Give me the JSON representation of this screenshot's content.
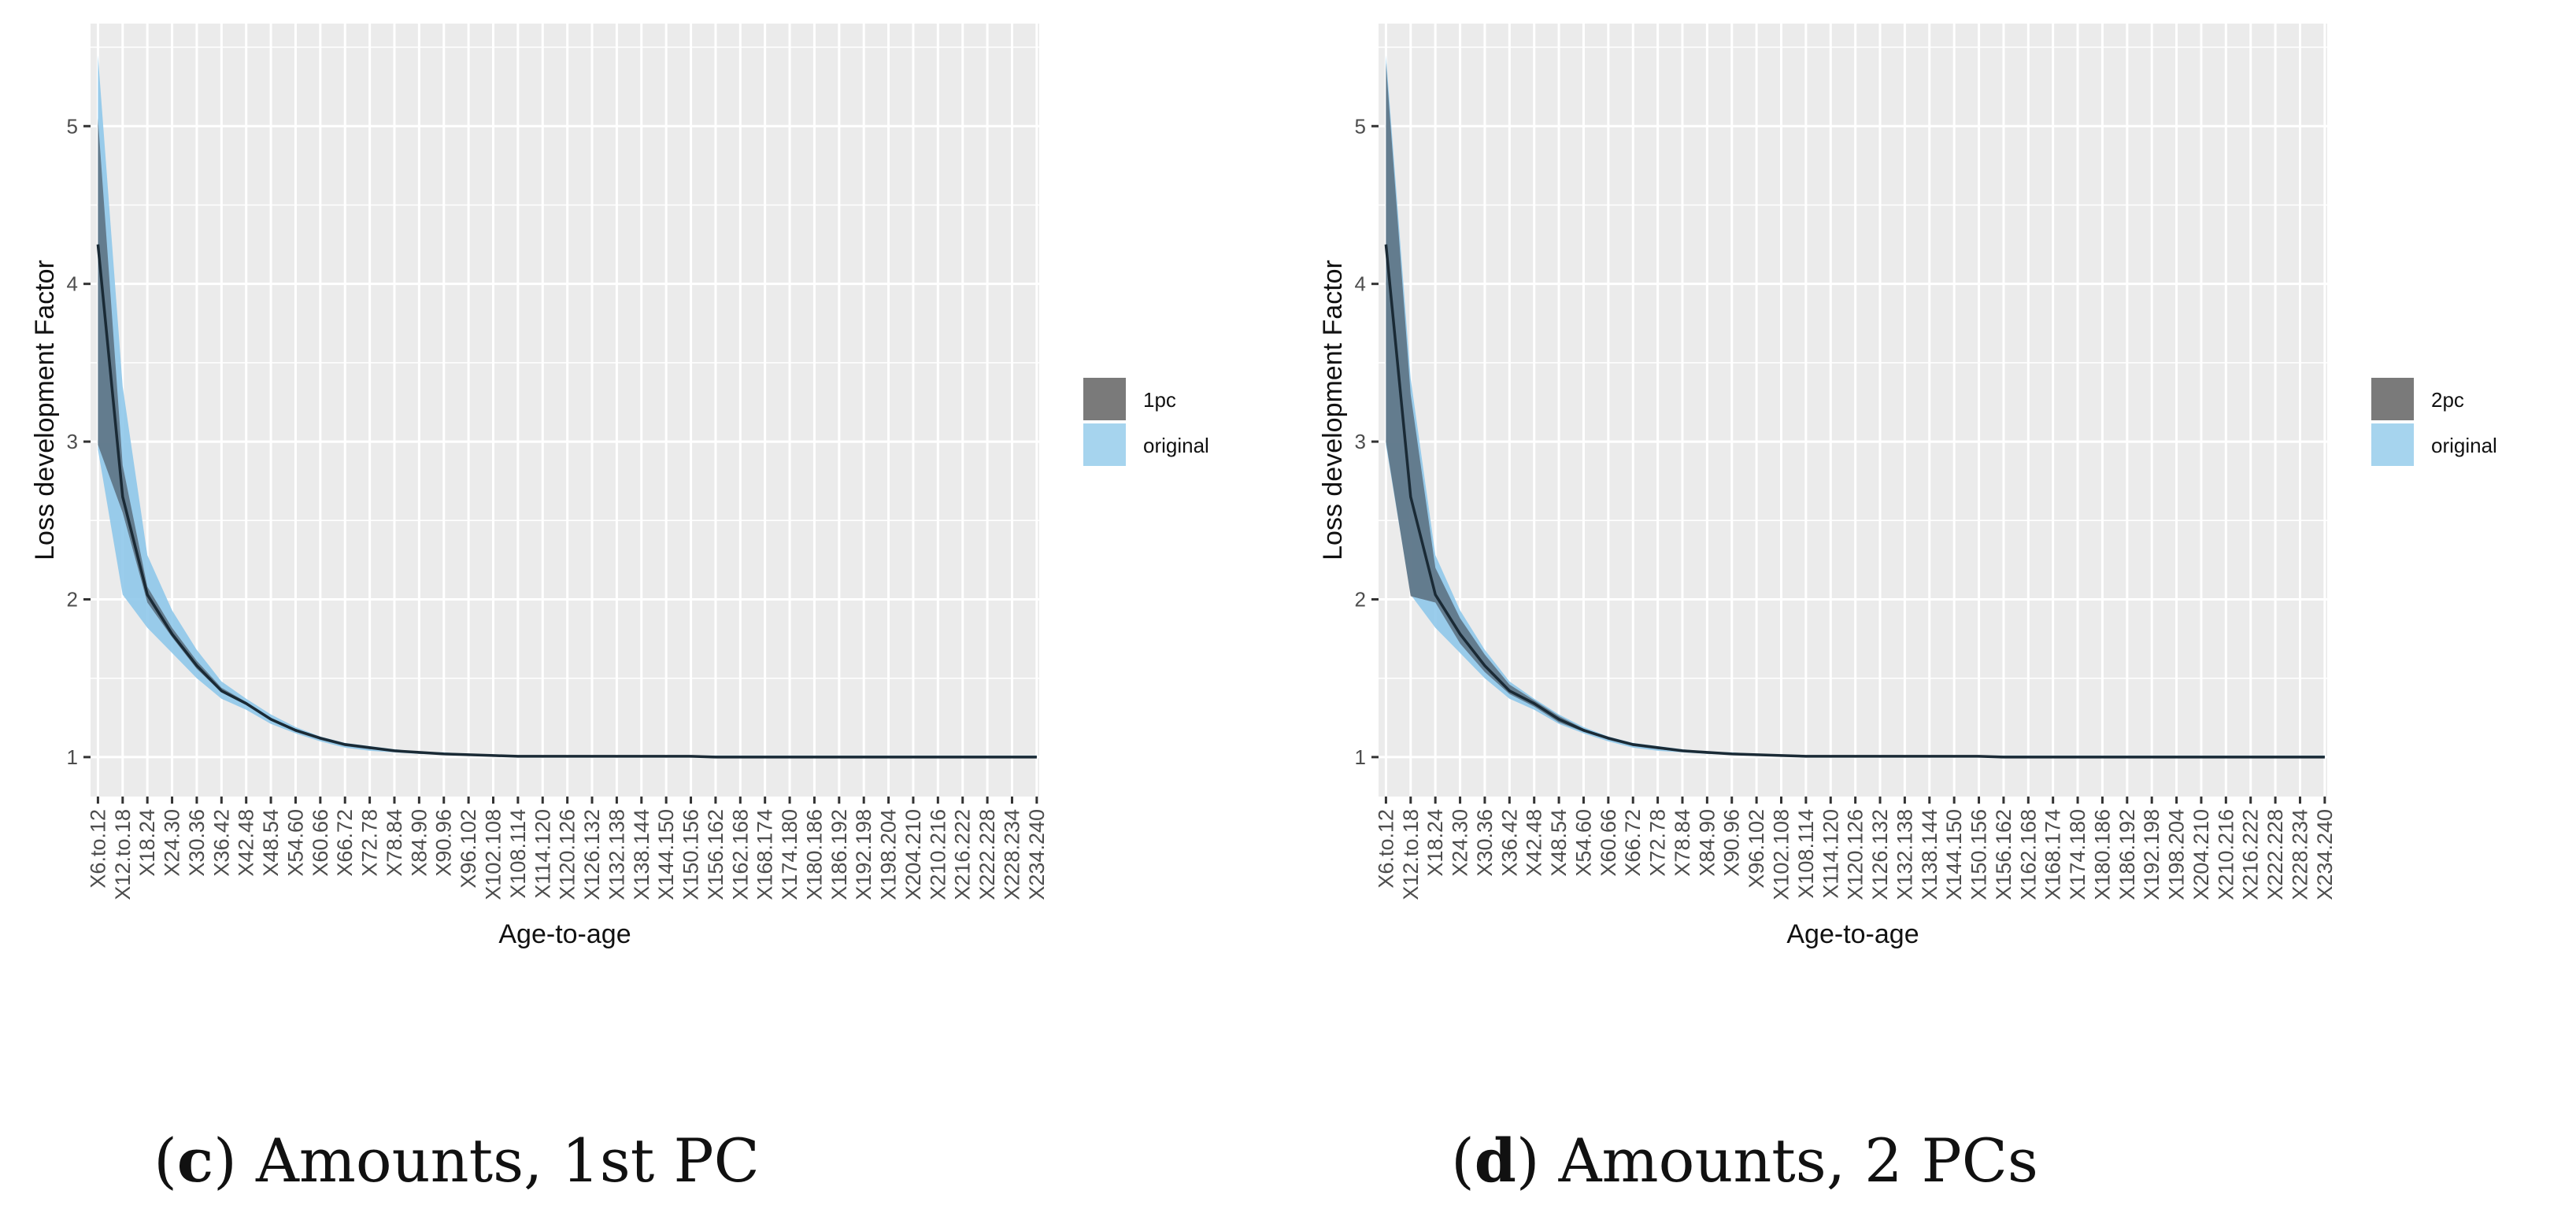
{
  "chart_data": [
    {
      "type": "area",
      "ylabel": "Loss development Factor",
      "xlabel": "Age-to-age",
      "ylim": [
        0.75,
        5.65
      ],
      "yticks": [
        "1",
        "2",
        "3",
        "4",
        "5"
      ],
      "legend_position": "right",
      "legend": [
        "1pc",
        "original"
      ],
      "categories": [
        "X6.to.12",
        "X12.to.18",
        "X18.24",
        "X24.30",
        "X30.36",
        "X36.42",
        "X42.48",
        "X48.54",
        "X54.60",
        "X60.66",
        "X66.72",
        "X72.78",
        "X78.84",
        "X84.90",
        "X90.96",
        "X96.102",
        "X102.108",
        "X108.114",
        "X114.120",
        "X120.126",
        "X126.132",
        "X132.138",
        "X138.144",
        "X144.150",
        "X150.156",
        "X156.162",
        "X162.168",
        "X168.174",
        "X174.180",
        "X180.186",
        "X186.192",
        "X192.198",
        "X198.204",
        "X204.210",
        "X210.216",
        "X216.222",
        "X222.228",
        "X228.234",
        "X234.240"
      ],
      "series": [
        {
          "name": "original",
          "lower": [
            2.95,
            2.03,
            1.82,
            1.66,
            1.5,
            1.37,
            1.3,
            1.21,
            1.15,
            1.1,
            1.06,
            1.04,
            1.03,
            1.02,
            1.015,
            1.01,
            1.005,
            1.0,
            1.0,
            1.0,
            1.0,
            1.0,
            1.0,
            1.0,
            1.0,
            1.0,
            1.0,
            1.0,
            1.0,
            1.0,
            1.0,
            1.0,
            1.0,
            1.0,
            1.0,
            1.0,
            1.0,
            1.0,
            1.0
          ],
          "upper": [
            5.45,
            3.35,
            2.28,
            1.93,
            1.68,
            1.48,
            1.37,
            1.27,
            1.19,
            1.13,
            1.09,
            1.07,
            1.05,
            1.035,
            1.03,
            1.02,
            1.015,
            1.01,
            1.01,
            1.01,
            1.01,
            1.01,
            1.01,
            1.01,
            1.01,
            1.01,
            1.01,
            1.01,
            1.01,
            1.01,
            1.01,
            1.01,
            1.01,
            1.01,
            1.01,
            1.01,
            1.01,
            1.01,
            1.01
          ]
        },
        {
          "name": "1pc",
          "lower": [
            2.98,
            2.55,
            1.98,
            1.76,
            1.56,
            1.41,
            1.33,
            1.23,
            1.16,
            1.11,
            1.07,
            1.05,
            1.04,
            1.02,
            1.02,
            1.01,
            1.005,
            1.0,
            1.0,
            1.0,
            1.0,
            1.0,
            1.0,
            1.0,
            1.0,
            1.0,
            1.0,
            1.0,
            1.0,
            1.0,
            1.0,
            1.0,
            1.0,
            1.0,
            1.0,
            1.0,
            1.0,
            1.0,
            1.0
          ],
          "upper": [
            5.05,
            2.85,
            2.08,
            1.82,
            1.61,
            1.44,
            1.35,
            1.24,
            1.17,
            1.12,
            1.08,
            1.06,
            1.045,
            1.03,
            1.025,
            1.015,
            1.01,
            1.005,
            1.005,
            1.005,
            1.005,
            1.005,
            1.005,
            1.005,
            1.005,
            1.005,
            1.005,
            1.005,
            1.005,
            1.005,
            1.005,
            1.005,
            1.005,
            1.005,
            1.005,
            1.005,
            1.005,
            1.005,
            1.005
          ]
        }
      ],
      "mean": [
        4.25,
        2.65,
        2.03,
        1.78,
        1.58,
        1.42,
        1.34,
        1.24,
        1.17,
        1.12,
        1.08,
        1.06,
        1.04,
        1.03,
        1.02,
        1.015,
        1.01,
        1.005,
        1.005,
        1.005,
        1.005,
        1.005,
        1.005,
        1.005,
        1.005,
        1.0,
        1.0,
        1.0,
        1.0,
        1.0,
        1.0,
        1.0,
        1.0,
        1.0,
        1.0,
        1.0,
        1.0,
        1.0,
        1.0
      ],
      "caption": {
        "letter": "c",
        "text": ") Amounts, 1st PC",
        "open": "("
      }
    },
    {
      "type": "area",
      "ylabel": "Loss development Factor",
      "xlabel": "Age-to-age",
      "ylim": [
        0.75,
        5.65
      ],
      "yticks": [
        "1",
        "2",
        "3",
        "4",
        "5"
      ],
      "legend_position": "right",
      "legend": [
        "2pc",
        "original"
      ],
      "categories": [
        "X6.to.12",
        "X12.to.18",
        "X18.24",
        "X24.30",
        "X30.36",
        "X36.42",
        "X42.48",
        "X48.54",
        "X54.60",
        "X60.66",
        "X66.72",
        "X72.78",
        "X78.84",
        "X84.90",
        "X90.96",
        "X96.102",
        "X102.108",
        "X108.114",
        "X114.120",
        "X120.126",
        "X126.132",
        "X132.138",
        "X138.144",
        "X144.150",
        "X150.156",
        "X156.162",
        "X162.168",
        "X168.174",
        "X174.180",
        "X180.186",
        "X186.192",
        "X192.198",
        "X198.204",
        "X204.210",
        "X210.216",
        "X216.222",
        "X222.228",
        "X228.234",
        "X234.240"
      ],
      "series": [
        {
          "name": "original",
          "lower": [
            2.98,
            2.03,
            1.82,
            1.66,
            1.5,
            1.37,
            1.3,
            1.21,
            1.15,
            1.1,
            1.06,
            1.04,
            1.03,
            1.02,
            1.015,
            1.01,
            1.005,
            1.0,
            1.0,
            1.0,
            1.0,
            1.0,
            1.0,
            1.0,
            1.0,
            1.0,
            1.0,
            1.0,
            1.0,
            1.0,
            1.0,
            1.0,
            1.0,
            1.0,
            1.0,
            1.0,
            1.0,
            1.0,
            1.0
          ],
          "upper": [
            5.45,
            3.4,
            2.28,
            1.93,
            1.68,
            1.48,
            1.37,
            1.27,
            1.19,
            1.13,
            1.09,
            1.07,
            1.05,
            1.035,
            1.03,
            1.02,
            1.015,
            1.01,
            1.01,
            1.01,
            1.01,
            1.01,
            1.01,
            1.01,
            1.01,
            1.01,
            1.01,
            1.01,
            1.01,
            1.01,
            1.01,
            1.01,
            1.01,
            1.01,
            1.01,
            1.01,
            1.01,
            1.01,
            1.01
          ]
        },
        {
          "name": "2pc",
          "lower": [
            3.0,
            2.02,
            1.98,
            1.72,
            1.54,
            1.4,
            1.32,
            1.22,
            1.16,
            1.11,
            1.07,
            1.05,
            1.035,
            1.02,
            1.02,
            1.01,
            1.005,
            1.0,
            1.0,
            1.0,
            1.0,
            1.0,
            1.0,
            1.0,
            1.0,
            1.0,
            1.0,
            1.0,
            1.0,
            1.0,
            1.0,
            1.0,
            1.0,
            1.0,
            1.0,
            1.0,
            1.0,
            1.0,
            1.0
          ],
          "upper": [
            5.4,
            3.3,
            2.2,
            1.88,
            1.65,
            1.46,
            1.36,
            1.26,
            1.18,
            1.125,
            1.085,
            1.065,
            1.045,
            1.03,
            1.025,
            1.015,
            1.01,
            1.005,
            1.005,
            1.005,
            1.005,
            1.005,
            1.005,
            1.005,
            1.005,
            1.005,
            1.005,
            1.005,
            1.005,
            1.005,
            1.005,
            1.005,
            1.005,
            1.005,
            1.005,
            1.005,
            1.005,
            1.005,
            1.005
          ]
        }
      ],
      "mean": [
        4.25,
        2.65,
        2.03,
        1.78,
        1.58,
        1.42,
        1.34,
        1.24,
        1.17,
        1.12,
        1.08,
        1.06,
        1.04,
        1.03,
        1.02,
        1.015,
        1.01,
        1.005,
        1.005,
        1.005,
        1.005,
        1.005,
        1.005,
        1.005,
        1.005,
        1.0,
        1.0,
        1.0,
        1.0,
        1.0,
        1.0,
        1.0,
        1.0,
        1.0,
        1.0,
        1.0,
        1.0,
        1.0,
        1.0
      ],
      "caption": {
        "letter": "d",
        "text": ") Amounts, 2 PCs",
        "open": "("
      }
    }
  ],
  "colors": {
    "panel_bg": "#ebebeb",
    "grid": "#ffffff",
    "original_fill": "#8fc8ea",
    "pc_fill": "#4d5a66",
    "legend_pc": "#7a7a7a",
    "legend_original": "#a6d4ee",
    "mean_line": "#1a2a35"
  }
}
